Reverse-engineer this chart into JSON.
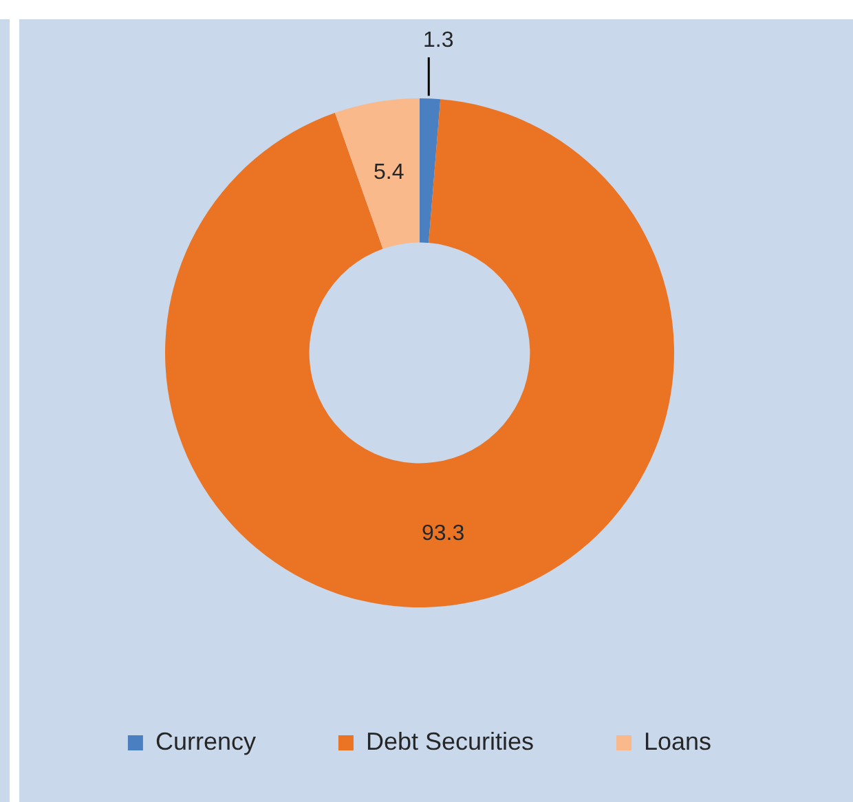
{
  "chart_data": {
    "type": "donut",
    "categories": [
      "Currency",
      "Debt Securities",
      "Loans"
    ],
    "values": [
      1.3,
      93.3,
      5.4
    ],
    "colors": [
      "#4a7fc1",
      "#eb7424",
      "#f9b98a"
    ],
    "data_labels": true,
    "legend": "bottom"
  }
}
